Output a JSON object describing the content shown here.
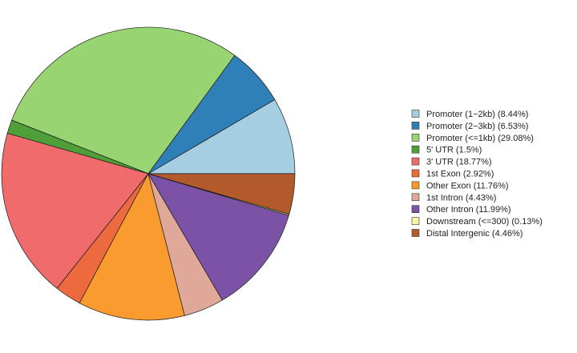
{
  "chart_data": {
    "type": "pie",
    "title": "",
    "legend_position": "right",
    "start": "3 o'clock, counter-clockwise",
    "slices": [
      {
        "label": "Promoter (1−2kb) (8.44%)",
        "value": 8.44,
        "color": "#a6cee3"
      },
      {
        "label": "Promoter (2−3kb) (6.53%)",
        "value": 6.53,
        "color": "#2f80b8"
      },
      {
        "label": "Promoter (<=1kb) (29.08%)",
        "value": 29.08,
        "color": "#99d473"
      },
      {
        "label": "5' UTR (1.5%)",
        "value": 1.5,
        "color": "#4f9e3a"
      },
      {
        "label": "3' UTR (18.77%)",
        "value": 18.77,
        "color": "#f06b6b"
      },
      {
        "label": "1st Exon (2.92%)",
        "value": 2.92,
        "color": "#ec6a3e"
      },
      {
        "label": "Other Exon (11.76%)",
        "value": 11.76,
        "color": "#f99b2e"
      },
      {
        "label": "1st Intron (4.43%)",
        "value": 4.43,
        "color": "#dfa898"
      },
      {
        "label": "Other Intron (11.99%)",
        "value": 11.99,
        "color": "#7b52a6"
      },
      {
        "label": "Downstream (<=300) (0.13%)",
        "value": 0.13,
        "color": "#f5f5a6"
      },
      {
        "label": "Distal Intergenic (4.46%)",
        "value": 4.46,
        "color": "#b25a2c"
      }
    ]
  }
}
